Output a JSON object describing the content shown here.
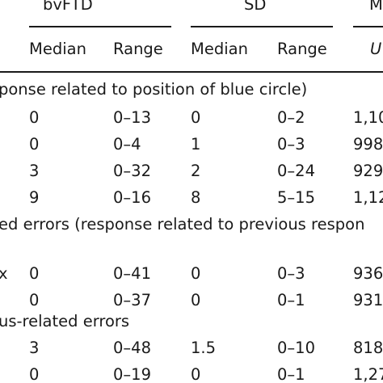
{
  "header": {
    "groups": [
      "bvFTD",
      "SD",
      "M"
    ],
    "subheaders": [
      "Median",
      "Range",
      "Median",
      "Range",
      "U"
    ]
  },
  "sections": [
    {
      "label": "ponse related to position of blue circle)",
      "rows": [
        [
          "0",
          "0–13",
          "0",
          "0–2",
          "1,10"
        ],
        [
          "0",
          "0–4",
          "1",
          "0–3",
          "998"
        ],
        [
          "3",
          "0–32",
          "2",
          "0–24",
          "929"
        ],
        [
          "9",
          "0–16",
          "8",
          "5–15",
          "1,12"
        ]
      ]
    },
    {
      "label": "ed errors (response related to previous respon",
      "rows": [
        [
          "0",
          "0–41",
          "0",
          "0–3",
          "936"
        ],
        [
          "0",
          "0–37",
          "0",
          "0–1",
          "931"
        ]
      ]
    },
    {
      "label": "us-related errors",
      "rows": [
        [
          "3",
          "0–48",
          "1.5",
          "0–10",
          "818"
        ],
        [
          "0",
          "0–19",
          "0",
          "0–1",
          "1,27"
        ]
      ]
    }
  ],
  "row_prefix_marks": [
    "x"
  ]
}
